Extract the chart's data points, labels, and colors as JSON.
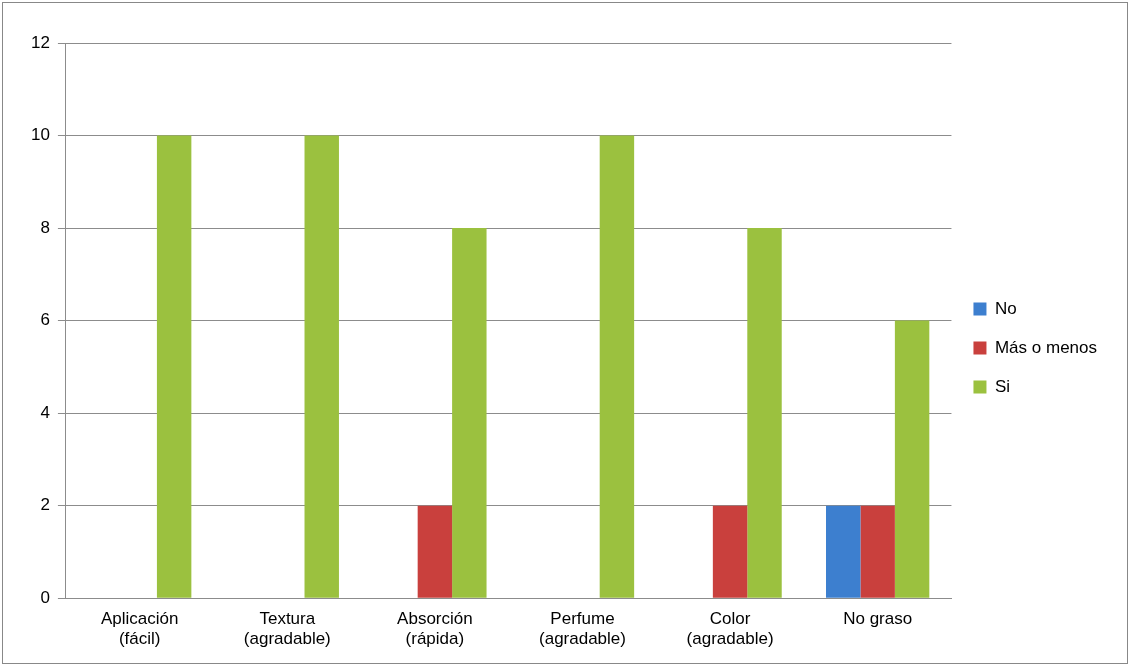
{
  "chart_data": {
    "type": "bar",
    "categories": [
      "Aplicación (fácil)",
      "Textura (agradable)",
      "Absorción (rápida)",
      "Perfume (agradable)",
      "Color (agradable)",
      "No graso"
    ],
    "series": [
      {
        "name": "No",
        "color": "#3d7fcf",
        "values": [
          0,
          0,
          0,
          0,
          0,
          2
        ]
      },
      {
        "name": "Más o menos",
        "color": "#c9403d",
        "values": [
          0,
          0,
          2,
          0,
          2,
          2
        ]
      },
      {
        "name": "Si",
        "color": "#9bc13f",
        "values": [
          10,
          10,
          8,
          10,
          8,
          6
        ]
      }
    ],
    "ylim": [
      0,
      12
    ],
    "yticks": [
      0,
      2,
      4,
      6,
      8,
      10,
      12
    ],
    "grid": "y",
    "legend": "right"
  }
}
